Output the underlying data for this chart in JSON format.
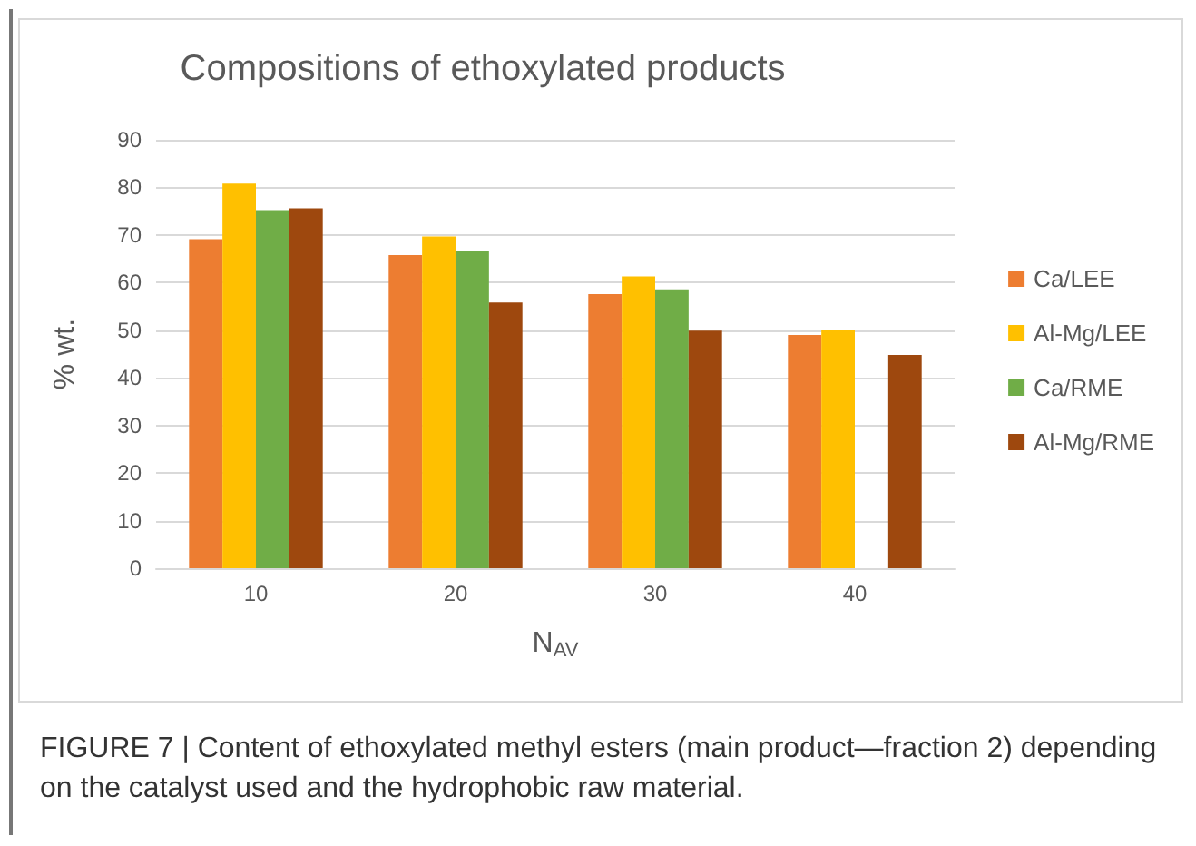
{
  "chart_data": {
    "type": "bar",
    "title": "Compositions of ethoxylated products",
    "xlabel": "N$_{AV}$",
    "ylabel": "% wt.",
    "categories": [
      "10",
      "20",
      "30",
      "40"
    ],
    "series": [
      {
        "name": "Ca/LEE",
        "color": "#ed7d31",
        "values": [
          69.1,
          65.8,
          57.6,
          49.0
        ]
      },
      {
        "name": "Al-Mg/LEE",
        "color": "#ffc000",
        "values": [
          80.8,
          69.7,
          61.3,
          50.0
        ]
      },
      {
        "name": "Ca/RME",
        "color": "#70ad47",
        "values": [
          75.2,
          66.7,
          58.6,
          null
        ]
      },
      {
        "name": "Al-Mg/RME",
        "color": "#9e480e",
        "values": [
          75.6,
          55.8,
          49.9,
          44.8
        ]
      }
    ],
    "ylim": [
      0,
      90
    ],
    "yticks": [
      0,
      10,
      20,
      30,
      40,
      50,
      60,
      70,
      80,
      90
    ],
    "grid": "y",
    "legend": "right",
    "annotations": [
      "FIGURE 7 | Content of ethoxylated methyl esters (main product—fraction 2) depending on the catalyst used and the hydrophobic raw material."
    ]
  }
}
